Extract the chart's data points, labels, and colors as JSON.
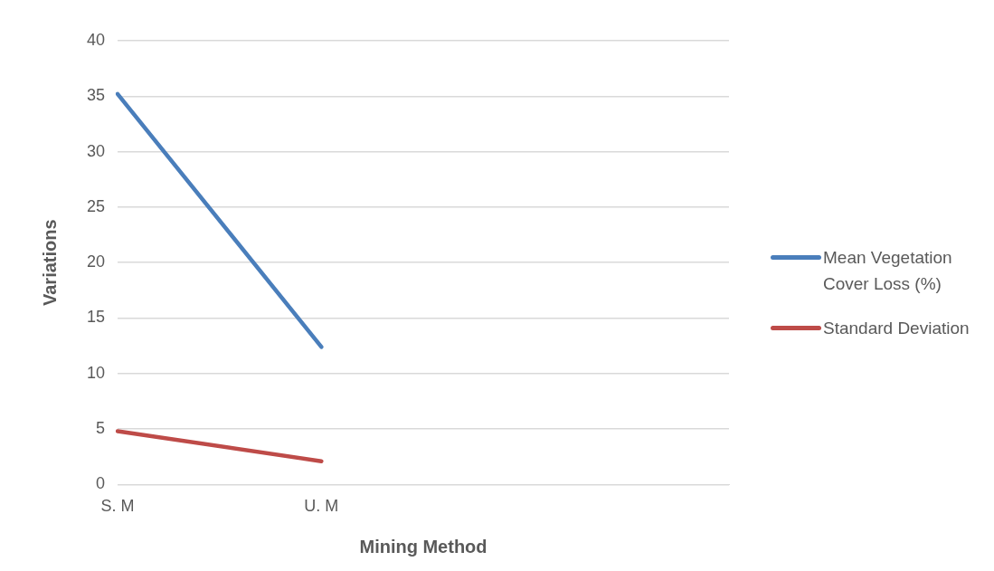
{
  "chart_data": {
    "type": "line",
    "xlabel": "Mining Method",
    "ylabel": "Variations",
    "categories": [
      "S. M",
      "U. M",
      null,
      null
    ],
    "series": [
      {
        "name": "Mean Vegetation Cover Loss (%)",
        "color": "#4a7ebb",
        "values": [
          35.2,
          12.4,
          null,
          null
        ]
      },
      {
        "name": "Standard Deviation",
        "color": "#be4b48",
        "values": [
          4.8,
          2.1,
          null,
          null
        ]
      }
    ],
    "ylim": [
      0,
      40
    ],
    "yticks": [
      0,
      5,
      10,
      15,
      20,
      25,
      30,
      35,
      40
    ],
    "grid": "y",
    "legend": "right",
    "marker": "none",
    "line_style": "solid"
  }
}
